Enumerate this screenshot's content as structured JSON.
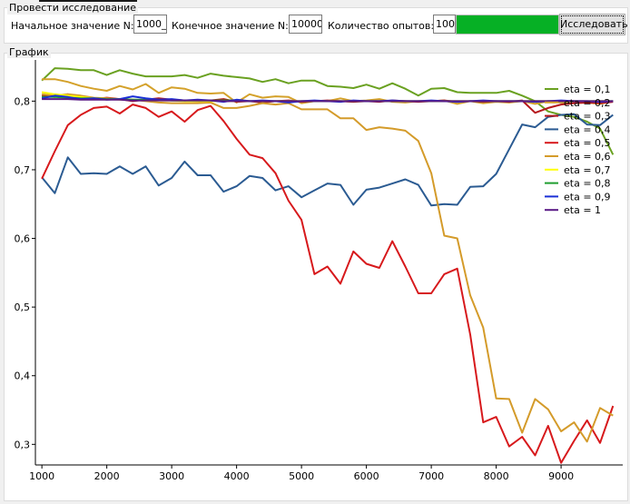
{
  "research": {
    "group_title": "Провести исследование",
    "start_label": "Начальное значение N:",
    "start_value": "1000_",
    "end_label": "Конечное значение N:",
    "end_value": "10000",
    "count_label": "Количество опытов:",
    "count_value": "100",
    "progress": 1.0,
    "button_label": "Исследовать"
  },
  "graph_group_title": "График",
  "chart_data": {
    "type": "line",
    "xlim": [
      900,
      9950
    ],
    "ylim": [
      0.27,
      0.86
    ],
    "x_ticks": [
      1000,
      2000,
      3000,
      4000,
      5000,
      6000,
      7000,
      8000,
      9000
    ],
    "y_ticks": [
      {
        "v": 0.3,
        "label": "0,3"
      },
      {
        "v": 0.4,
        "label": "0,4"
      },
      {
        "v": 0.5,
        "label": "0,5"
      },
      {
        "v": 0.6,
        "label": "0,6"
      },
      {
        "v": 0.7,
        "label": "0,7"
      },
      {
        "v": 0.8,
        "label": "0,8"
      }
    ],
    "grid": false,
    "legend_position": "top-right",
    "x": [
      1000,
      1200,
      1400,
      1600,
      1800,
      2000,
      2200,
      2400,
      2600,
      2800,
      3000,
      3200,
      3400,
      3600,
      3800,
      4000,
      4200,
      4400,
      4600,
      4800,
      5000,
      5200,
      5400,
      5600,
      5800,
      6000,
      6200,
      6400,
      6600,
      6800,
      7000,
      7200,
      7400,
      7600,
      7800,
      8000,
      8200,
      8400,
      8600,
      8800,
      9000,
      9200,
      9400,
      9600,
      9800
    ],
    "series": [
      {
        "name": "eta = 0,1",
        "color": "#6aa121",
        "values": [
          0.83,
          0.848,
          0.847,
          0.845,
          0.845,
          0.838,
          0.845,
          0.84,
          0.836,
          0.836,
          0.836,
          0.838,
          0.834,
          0.84,
          0.837,
          0.835,
          0.833,
          0.828,
          0.832,
          0.826,
          0.83,
          0.83,
          0.822,
          0.821,
          0.819,
          0.824,
          0.818,
          0.826,
          0.818,
          0.808,
          0.818,
          0.819,
          0.813,
          0.812,
          0.812,
          0.812,
          0.815,
          0.808,
          0.8,
          0.785,
          0.78,
          0.777,
          0.77,
          0.76,
          0.722
        ]
      },
      {
        "name": "eta = 0,2",
        "color": "#d4a12a",
        "values": [
          0.832,
          0.832,
          0.828,
          0.822,
          0.818,
          0.815,
          0.822,
          0.817,
          0.825,
          0.812,
          0.82,
          0.818,
          0.812,
          0.811,
          0.812,
          0.798,
          0.81,
          0.805,
          0.807,
          0.806,
          0.797,
          0.8,
          0.8,
          0.804,
          0.8,
          0.801,
          0.803,
          0.799,
          0.798,
          0.8,
          0.8,
          0.801,
          0.796,
          0.8,
          0.797,
          0.799,
          0.798,
          0.8,
          0.796,
          0.8,
          0.798,
          0.797,
          0.798,
          0.796,
          0.8
        ]
      },
      {
        "name": "eta = 0,3",
        "color": "#b5161b",
        "values": [
          0.808,
          0.806,
          0.81,
          0.807,
          0.803,
          0.805,
          0.803,
          0.8,
          0.802,
          0.804,
          0.802,
          0.801,
          0.8,
          0.801,
          0.803,
          0.799,
          0.8,
          0.798,
          0.8,
          0.801,
          0.799,
          0.8,
          0.801,
          0.8,
          0.799,
          0.8,
          0.799,
          0.801,
          0.8,
          0.799,
          0.8,
          0.801,
          0.799,
          0.8,
          0.799,
          0.8,
          0.799,
          0.801,
          0.783,
          0.79,
          0.795,
          0.797,
          0.798,
          0.797,
          0.799
        ]
      },
      {
        "name": "eta = 0,4",
        "color": "#2b5b92",
        "values": [
          0.689,
          0.666,
          0.718,
          0.694,
          0.695,
          0.694,
          0.705,
          0.694,
          0.705,
          0.677,
          0.688,
          0.712,
          0.692,
          0.692,
          0.668,
          0.676,
          0.691,
          0.688,
          0.67,
          0.676,
          0.66,
          0.67,
          0.68,
          0.678,
          0.649,
          0.671,
          0.674,
          0.68,
          0.686,
          0.678,
          0.648,
          0.65,
          0.649,
          0.675,
          0.676,
          0.694,
          0.73,
          0.766,
          0.762,
          0.777,
          0.78,
          0.781,
          0.766,
          0.765,
          0.78
        ]
      },
      {
        "name": "eta = 0,5",
        "color": "#d7191c",
        "values": [
          0.687,
          0.727,
          0.765,
          0.78,
          0.79,
          0.792,
          0.782,
          0.795,
          0.79,
          0.777,
          0.785,
          0.77,
          0.787,
          0.793,
          0.771,
          0.745,
          0.722,
          0.717,
          0.695,
          0.655,
          0.627,
          0.548,
          0.559,
          0.534,
          0.581,
          0.563,
          0.557,
          0.596,
          0.559,
          0.52,
          0.52,
          0.548,
          0.556,
          0.46,
          0.332,
          0.34,
          0.297,
          0.311,
          0.284,
          0.327,
          0.273,
          0.305,
          0.335,
          0.302,
          0.356
        ]
      },
      {
        "name": "eta = 0,6",
        "color": "#d49b2a",
        "values": [
          0.81,
          0.808,
          0.81,
          0.808,
          0.805,
          0.804,
          0.803,
          0.802,
          0.8,
          0.798,
          0.797,
          0.797,
          0.797,
          0.798,
          0.79,
          0.79,
          0.793,
          0.797,
          0.795,
          0.797,
          0.788,
          0.788,
          0.788,
          0.775,
          0.775,
          0.758,
          0.762,
          0.76,
          0.757,
          0.742,
          0.695,
          0.604,
          0.6,
          0.517,
          0.47,
          0.367,
          0.366,
          0.317,
          0.366,
          0.351,
          0.319,
          0.332,
          0.304,
          0.353,
          0.342
        ]
      },
      {
        "name": "eta = 0,7",
        "color": "#ffff00",
        "values": [
          0.813,
          0.81,
          0.808,
          0.806,
          0.804,
          0.803,
          0.802,
          0.802,
          0.801,
          0.801,
          0.801,
          0.8,
          0.8,
          0.8,
          0.8,
          0.8,
          0.8,
          0.8,
          0.8,
          0.8,
          0.8,
          0.8,
          0.8,
          0.8,
          0.8,
          0.8,
          0.8,
          0.8,
          0.8,
          0.8,
          0.8,
          0.8,
          0.8,
          0.8,
          0.8,
          0.8,
          0.8,
          0.8,
          0.8,
          0.8,
          0.8,
          0.8,
          0.8,
          0.8,
          0.8
        ]
      },
      {
        "name": "eta = 0,8",
        "color": "#1f9e2f",
        "values": [
          0.806,
          0.806,
          0.805,
          0.804,
          0.804,
          0.803,
          0.803,
          0.802,
          0.802,
          0.802,
          0.801,
          0.801,
          0.801,
          0.801,
          0.801,
          0.801,
          0.8,
          0.8,
          0.8,
          0.8,
          0.8,
          0.8,
          0.8,
          0.8,
          0.8,
          0.8,
          0.8,
          0.8,
          0.8,
          0.8,
          0.8,
          0.8,
          0.8,
          0.8,
          0.8,
          0.8,
          0.8,
          0.8,
          0.8,
          0.8,
          0.8,
          0.8,
          0.8,
          0.8,
          0.8
        ]
      },
      {
        "name": "eta = 0,9",
        "color": "#1a2fd6",
        "values": [
          0.804,
          0.808,
          0.806,
          0.803,
          0.804,
          0.802,
          0.803,
          0.807,
          0.804,
          0.802,
          0.803,
          0.801,
          0.802,
          0.801,
          0.799,
          0.802,
          0.8,
          0.801,
          0.8,
          0.798,
          0.8,
          0.801,
          0.8,
          0.799,
          0.801,
          0.8,
          0.8,
          0.801,
          0.8,
          0.8,
          0.801,
          0.8,
          0.799,
          0.8,
          0.801,
          0.8,
          0.8,
          0.8,
          0.799,
          0.8,
          0.801,
          0.8,
          0.8,
          0.799,
          0.8
        ]
      },
      {
        "name": "eta = 1",
        "color": "#5a1a86",
        "values": [
          0.803,
          0.803,
          0.803,
          0.802,
          0.802,
          0.802,
          0.802,
          0.801,
          0.801,
          0.801,
          0.801,
          0.801,
          0.801,
          0.801,
          0.8,
          0.8,
          0.8,
          0.8,
          0.8,
          0.8,
          0.8,
          0.8,
          0.8,
          0.8,
          0.8,
          0.8,
          0.8,
          0.8,
          0.8,
          0.8,
          0.8,
          0.8,
          0.8,
          0.8,
          0.8,
          0.8,
          0.8,
          0.8,
          0.8,
          0.8,
          0.8,
          0.8,
          0.8,
          0.8,
          0.8
        ]
      }
    ]
  }
}
